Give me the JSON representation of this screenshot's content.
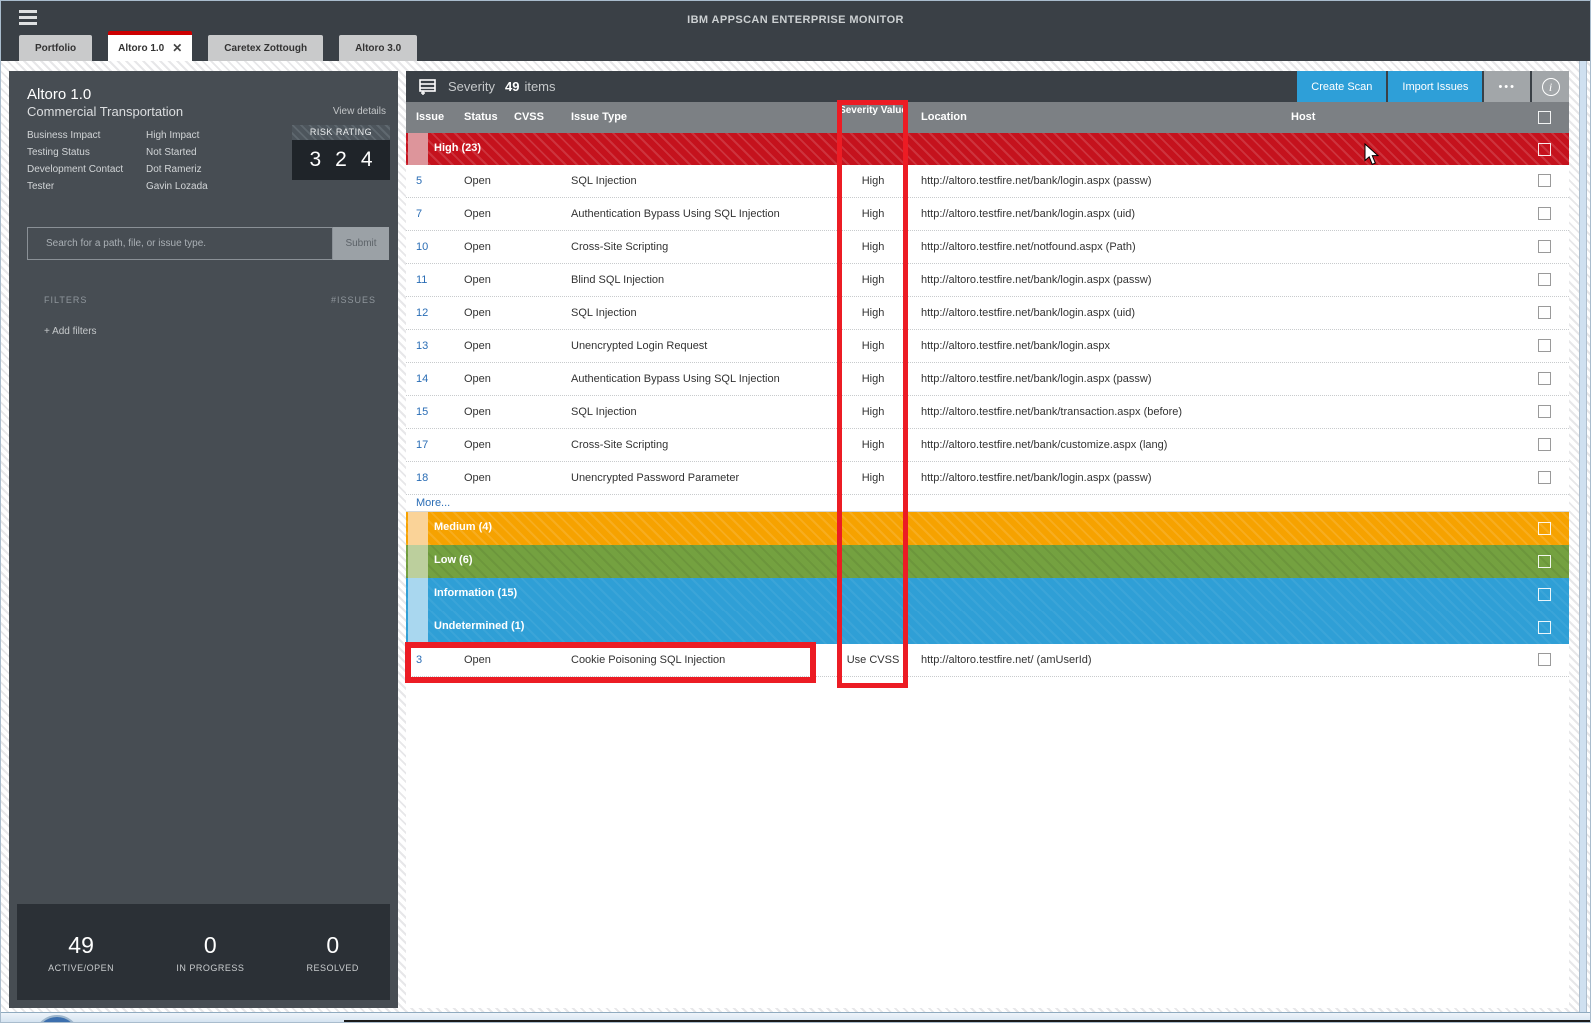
{
  "window": {
    "title": "IBM APPSCAN ENTERPRISE MONITOR"
  },
  "tabs": [
    {
      "label": "Portfolio",
      "active": false
    },
    {
      "label": "Altoro 1.0",
      "active": true
    },
    {
      "label": "Caretex Zottough",
      "active": false
    },
    {
      "label": "Altoro 3.0",
      "active": false
    }
  ],
  "sidebar": {
    "app_name": "Altoro 1.0",
    "app_type": "Commercial Transportation",
    "view_details": "View details",
    "fields": [
      {
        "label": "Business Impact",
        "value": "High Impact"
      },
      {
        "label": "Testing Status",
        "value": "Not Started"
      },
      {
        "label": "Development Contact",
        "value": "Dot Rameriz"
      },
      {
        "label": "Tester",
        "value": "Gavin Lozada"
      }
    ],
    "risk_rating": {
      "label": "RISK RATING",
      "values": [
        "3",
        "2",
        "4"
      ]
    },
    "search": {
      "placeholder": "Search for a path, file, or issue type.",
      "submit": "Submit"
    },
    "filters_label": "FILTERS",
    "issues_label": "#ISSUES",
    "add_filters": "+ Add filters",
    "stats": [
      {
        "value": "49",
        "label": "ACTIVE/OPEN"
      },
      {
        "value": "0",
        "label": "IN PROGRESS"
      },
      {
        "value": "0",
        "label": "RESOLVED"
      }
    ]
  },
  "main": {
    "group_by": "Severity",
    "count": "49",
    "items_label": "items",
    "buttons": {
      "create_scan": "Create Scan",
      "import_issues": "Import Issues",
      "more": "•••"
    },
    "columns": [
      "Issue",
      "Status",
      "CVSS",
      "Issue Type",
      "Severity Value",
      "Location",
      "Host"
    ],
    "sections": [
      {
        "type": "group",
        "severity": "high",
        "label": "High (23)"
      },
      {
        "type": "issue",
        "id": "5",
        "status": "Open",
        "issue_type": "SQL Injection",
        "severity_value": "High",
        "location": "http://altoro.testfire.net/bank/login.aspx (passw)"
      },
      {
        "type": "issue",
        "id": "7",
        "status": "Open",
        "issue_type": "Authentication Bypass Using SQL Injection",
        "severity_value": "High",
        "location": "http://altoro.testfire.net/bank/login.aspx (uid)"
      },
      {
        "type": "issue",
        "id": "10",
        "status": "Open",
        "issue_type": "Cross-Site Scripting",
        "severity_value": "High",
        "location": "http://altoro.testfire.net/notfound.aspx (Path)"
      },
      {
        "type": "issue",
        "id": "11",
        "status": "Open",
        "issue_type": "Blind SQL Injection",
        "severity_value": "High",
        "location": "http://altoro.testfire.net/bank/login.aspx (passw)"
      },
      {
        "type": "issue",
        "id": "12",
        "status": "Open",
        "issue_type": "SQL Injection",
        "severity_value": "High",
        "location": "http://altoro.testfire.net/bank/login.aspx (uid)"
      },
      {
        "type": "issue",
        "id": "13",
        "status": "Open",
        "issue_type": "Unencrypted Login Request",
        "severity_value": "High",
        "location": "http://altoro.testfire.net/bank/login.aspx"
      },
      {
        "type": "issue",
        "id": "14",
        "status": "Open",
        "issue_type": "Authentication Bypass Using SQL Injection",
        "severity_value": "High",
        "location": "http://altoro.testfire.net/bank/login.aspx (passw)"
      },
      {
        "type": "issue",
        "id": "15",
        "status": "Open",
        "issue_type": "SQL Injection",
        "severity_value": "High",
        "location": "http://altoro.testfire.net/bank/transaction.aspx (before)"
      },
      {
        "type": "issue",
        "id": "17",
        "status": "Open",
        "issue_type": "Cross-Site Scripting",
        "severity_value": "High",
        "location": "http://altoro.testfire.net/bank/customize.aspx (lang)"
      },
      {
        "type": "issue",
        "id": "18",
        "status": "Open",
        "issue_type": "Unencrypted Password Parameter",
        "severity_value": "High",
        "location": "http://altoro.testfire.net/bank/login.aspx (passw)"
      },
      {
        "type": "more",
        "label": "More..."
      },
      {
        "type": "group",
        "severity": "medium",
        "label": "Medium (4)"
      },
      {
        "type": "group",
        "severity": "low",
        "label": "Low (6)"
      },
      {
        "type": "group",
        "severity": "information",
        "label": "Information (15)"
      },
      {
        "type": "group",
        "severity": "undetermined",
        "label": "Undetermined (1)"
      },
      {
        "type": "issue",
        "id": "3",
        "status": "Open",
        "issue_type": "Cookie Poisoning SQL Injection",
        "severity_value": "Use CVSS",
        "location": "http://altoro.testfire.net/ (amUserId)"
      }
    ]
  },
  "colors": {
    "annotation_red": "#ec1c24",
    "severity_high": "#c5121d",
    "severity_medium": "#f6a200",
    "severity_low": "#74a140",
    "severity_information": "#2f9fd6",
    "button_blue": "#2e9fd8",
    "active_tab_accent": "#cc0001"
  }
}
